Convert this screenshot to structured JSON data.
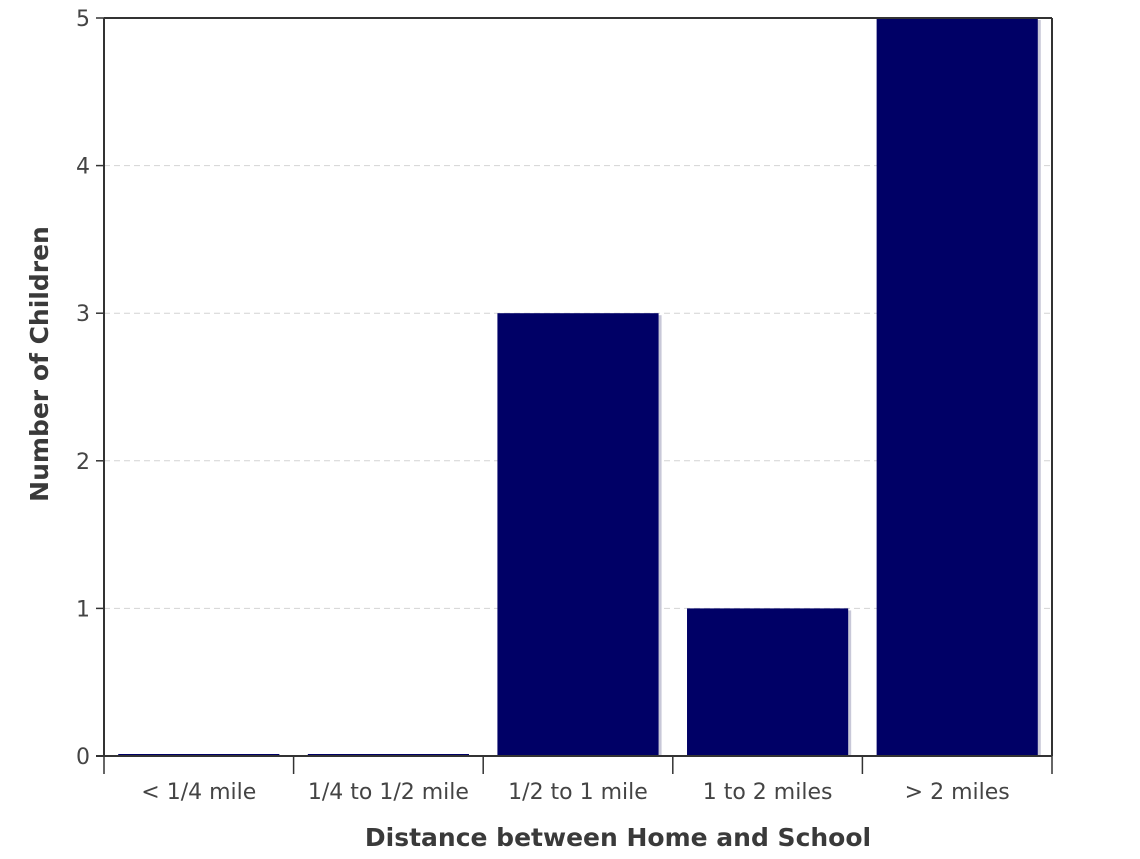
{
  "chart_data": {
    "type": "bar",
    "title": "",
    "xlabel": "Distance between Home and School",
    "ylabel": "Number of Children",
    "categories": [
      "< 1/4 mile",
      "1/4 to 1/2 mile",
      "1/2 to 1 mile",
      "1 to 2 miles",
      "> 2 miles"
    ],
    "values": [
      0,
      0,
      3,
      1,
      5
    ],
    "ylim": [
      0,
      5
    ],
    "yticks": [
      "0",
      "1",
      "2",
      "3",
      "4",
      "5"
    ],
    "grid": true,
    "bar_color": "#000066",
    "bar_shadow_color": "#c8c8d8"
  }
}
